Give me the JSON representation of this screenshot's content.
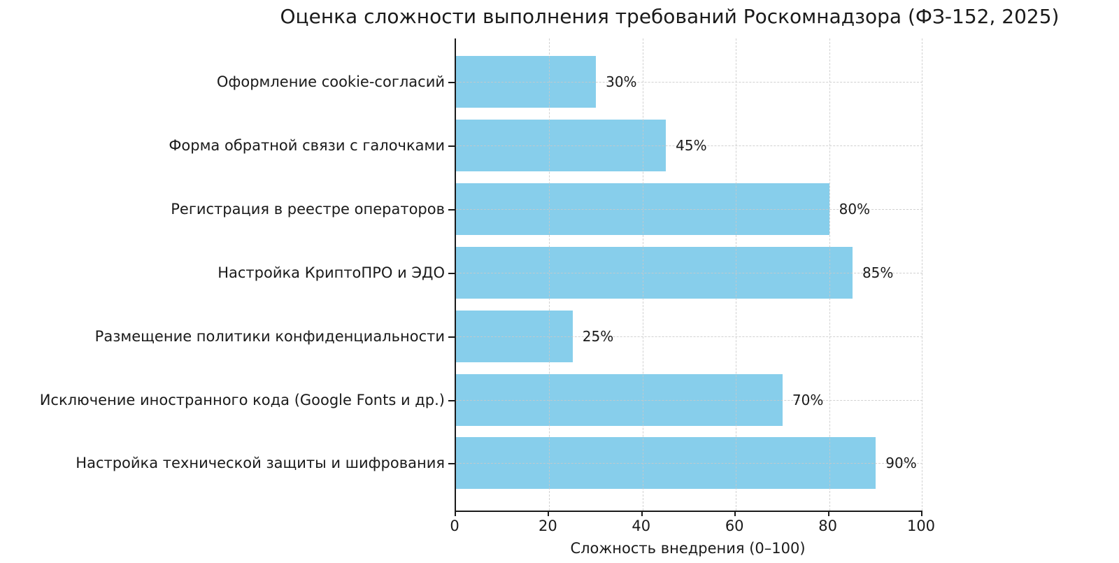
{
  "chart_data": {
    "type": "bar",
    "orientation": "horizontal",
    "title": "Оценка сложности выполнения требований Роскомнадзора (ФЗ-152, 2025)",
    "categories": [
      "Оформление cookie-согласий",
      "Форма обратной связи с галочками",
      "Регистрация в реестре операторов",
      "Настройка КриптоПРО и ЭДО",
      "Размещение политики конфиденциальности",
      "Исключение иностранного кода (Google Fonts и др.)",
      "Настройка технической защиты и шифрования"
    ],
    "values": [
      30,
      45,
      80,
      85,
      25,
      70,
      90
    ],
    "value_labels": [
      "30%",
      "45%",
      "80%",
      "85%",
      "25%",
      "70%",
      "90%"
    ],
    "xlabel": "Сложность внедрения (0–100)",
    "ylabel": "",
    "xlim": [
      0,
      100
    ],
    "xticks": [
      0,
      20,
      40,
      60,
      80,
      100
    ],
    "grid": "dashed, both axes",
    "legend": "none",
    "colors": {
      "bar": "#87CEEB",
      "grid": "#c9c9c9",
      "spine": "#1a1a1a",
      "text": "#1a1a1a",
      "background": "#ffffff"
    }
  }
}
